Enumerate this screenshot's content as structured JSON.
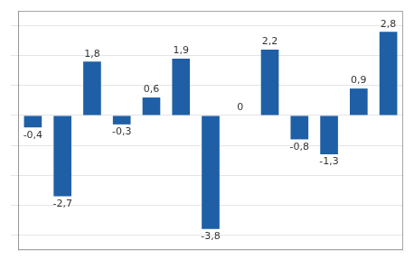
{
  "chart_data": {
    "type": "bar",
    "categories": [
      null,
      null,
      null,
      null,
      null,
      null,
      null,
      null,
      null,
      null,
      null,
      null,
      null
    ],
    "values": [
      -0.4,
      -2.7,
      1.8,
      -0.3,
      0.6,
      1.9,
      -3.8,
      0,
      2.2,
      -0.8,
      -1.3,
      0.9,
      2.8
    ],
    "value_labels": [
      "-0,4",
      "-2,7",
      "1,8",
      "-0,3",
      "0,6",
      "1,9",
      "-3,8",
      "0",
      "2,2",
      "-0,8",
      "-1,3",
      "0,9",
      "2,8"
    ],
    "color": "#1f5fa6",
    "ylim": [
      -4.5,
      3.5
    ],
    "yticks": [
      -4,
      -3,
      -2,
      -1,
      0,
      1,
      2,
      3
    ],
    "grid": true,
    "data_labels": true,
    "tick_labels": false
  }
}
